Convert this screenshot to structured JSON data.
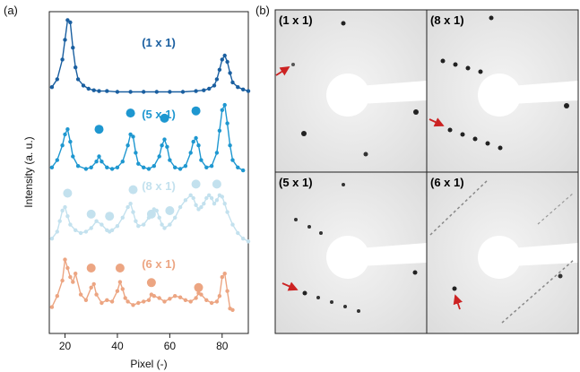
{
  "panels": {
    "a_label": "(a)",
    "b_label": "(b)"
  },
  "chart_data": {
    "type": "line",
    "xlabel": "Pixel (-)",
    "ylabel": "Intensity (a. u.)",
    "xlim": [
      14,
      90
    ],
    "xticks": [
      20,
      40,
      60,
      80
    ],
    "xtick_labels": [
      "20",
      "40",
      "60",
      "80"
    ],
    "y_ticks_shown": false,
    "series": [
      {
        "name": "(1 x 1)",
        "color": "#1a5fa0",
        "x": [
          15,
          17,
          19,
          20,
          21,
          22,
          23,
          24,
          25,
          27,
          29,
          31,
          33,
          36,
          40,
          45,
          50,
          55,
          60,
          65,
          70,
          73,
          75,
          77,
          78,
          79,
          80,
          81,
          82,
          83,
          84,
          86,
          88,
          90
        ],
        "y": [
          0.1,
          0.2,
          0.45,
          0.7,
          0.95,
          0.92,
          0.6,
          0.35,
          0.2,
          0.12,
          0.08,
          0.06,
          0.05,
          0.05,
          0.04,
          0.04,
          0.04,
          0.04,
          0.04,
          0.04,
          0.05,
          0.06,
          0.08,
          0.12,
          0.2,
          0.32,
          0.45,
          0.5,
          0.42,
          0.28,
          0.16,
          0.1,
          0.07,
          0.05
        ],
        "markers": []
      },
      {
        "name": "(5 x 1)",
        "color": "#1e97d0",
        "x": [
          15,
          17,
          19,
          20,
          21,
          22,
          23,
          25,
          28,
          30,
          32,
          33,
          34,
          36,
          38,
          40,
          42,
          44,
          45,
          46,
          47,
          48,
          50,
          52,
          54,
          56,
          57,
          58,
          59,
          60,
          62,
          64,
          66,
          68,
          69,
          70,
          71,
          72,
          74,
          76,
          78,
          79,
          80,
          81,
          82,
          83,
          84,
          86,
          88
        ],
        "y": [
          0.1,
          0.2,
          0.4,
          0.55,
          0.62,
          0.45,
          0.25,
          0.12,
          0.08,
          0.1,
          0.18,
          0.25,
          0.18,
          0.1,
          0.08,
          0.1,
          0.18,
          0.4,
          0.55,
          0.52,
          0.3,
          0.15,
          0.1,
          0.08,
          0.12,
          0.25,
          0.4,
          0.48,
          0.38,
          0.2,
          0.1,
          0.08,
          0.12,
          0.3,
          0.45,
          0.5,
          0.4,
          0.2,
          0.1,
          0.12,
          0.3,
          0.6,
          0.88,
          0.95,
          0.7,
          0.4,
          0.2,
          0.1,
          0.06
        ],
        "markers": [
          {
            "x": 33,
            "y": 0.62,
            "size": 5
          },
          {
            "x": 45,
            "y": 0.84,
            "size": 5
          },
          {
            "x": 58,
            "y": 0.77,
            "size": 5
          },
          {
            "x": 70,
            "y": 0.87,
            "size": 5
          }
        ]
      },
      {
        "name": "(8 x 1)",
        "color": "#c3e1ee",
        "x": [
          15,
          17,
          18,
          19,
          20,
          21,
          22,
          24,
          26,
          28,
          30,
          32,
          34,
          36,
          37,
          38,
          40,
          42,
          44,
          45,
          46,
          47,
          48,
          50,
          52,
          54,
          55,
          56,
          57,
          58,
          60,
          62,
          64,
          66,
          68,
          69,
          70,
          71,
          72,
          73,
          74,
          75,
          76,
          77,
          78,
          79,
          80,
          81,
          82,
          84,
          86,
          88,
          90
        ],
        "y": [
          0.1,
          0.2,
          0.35,
          0.5,
          0.55,
          0.42,
          0.3,
          0.22,
          0.18,
          0.2,
          0.25,
          0.35,
          0.3,
          0.22,
          0.2,
          0.22,
          0.28,
          0.4,
          0.55,
          0.6,
          0.48,
          0.35,
          0.28,
          0.3,
          0.4,
          0.52,
          0.5,
          0.4,
          0.3,
          0.25,
          0.3,
          0.4,
          0.55,
          0.65,
          0.72,
          0.68,
          0.58,
          0.52,
          0.55,
          0.6,
          0.68,
          0.72,
          0.68,
          0.6,
          0.65,
          0.72,
          0.7,
          0.6,
          0.48,
          0.3,
          0.18,
          0.1,
          0.06
        ],
        "markers": [
          {
            "x": 21,
            "y": 0.75,
            "size": 5
          },
          {
            "x": 30,
            "y": 0.45,
            "size": 5
          },
          {
            "x": 37,
            "y": 0.42,
            "size": 5
          },
          {
            "x": 46,
            "y": 0.8,
            "size": 5
          },
          {
            "x": 53,
            "y": 0.45,
            "size": 5
          },
          {
            "x": 60,
            "y": 0.5,
            "size": 5
          },
          {
            "x": 70,
            "y": 0.88,
            "size": 5
          },
          {
            "x": 78,
            "y": 0.88,
            "size": 5
          }
        ]
      },
      {
        "name": "(6 x 1)",
        "color": "#eca582",
        "x": [
          15,
          17,
          19,
          20,
          21,
          22,
          23,
          24,
          26,
          28,
          30,
          31,
          32,
          34,
          36,
          38,
          40,
          41,
          42,
          43,
          44,
          46,
          48,
          50,
          52,
          53,
          54,
          56,
          58,
          60,
          62,
          64,
          66,
          68,
          70,
          71,
          72,
          74,
          76,
          78,
          79,
          80,
          81,
          82,
          83,
          84
        ],
        "y": [
          0.12,
          0.28,
          0.5,
          0.8,
          0.68,
          0.55,
          0.48,
          0.6,
          0.3,
          0.22,
          0.4,
          0.45,
          0.3,
          0.18,
          0.22,
          0.2,
          0.35,
          0.48,
          0.38,
          0.25,
          0.2,
          0.15,
          0.18,
          0.2,
          0.22,
          0.3,
          0.28,
          0.25,
          0.2,
          0.24,
          0.28,
          0.26,
          0.22,
          0.2,
          0.25,
          0.32,
          0.3,
          0.22,
          0.18,
          0.2,
          0.28,
          0.55,
          0.6,
          0.35,
          0.1,
          0.08
        ],
        "markers": [
          {
            "x": 30,
            "y": 0.68,
            "size": 5
          },
          {
            "x": 41,
            "y": 0.68,
            "size": 5
          },
          {
            "x": 53,
            "y": 0.47,
            "size": 5
          },
          {
            "x": 71,
            "y": 0.4,
            "size": 5
          }
        ]
      }
    ]
  },
  "diffraction": {
    "tiles": [
      {
        "label": "(1 x 1)"
      },
      {
        "label": "(8 x 1)"
      },
      {
        "label": "(5 x 1)"
      },
      {
        "label": "(6 x 1)"
      }
    ],
    "arrow_color": "#cc2222",
    "spot_color": "#222222"
  }
}
